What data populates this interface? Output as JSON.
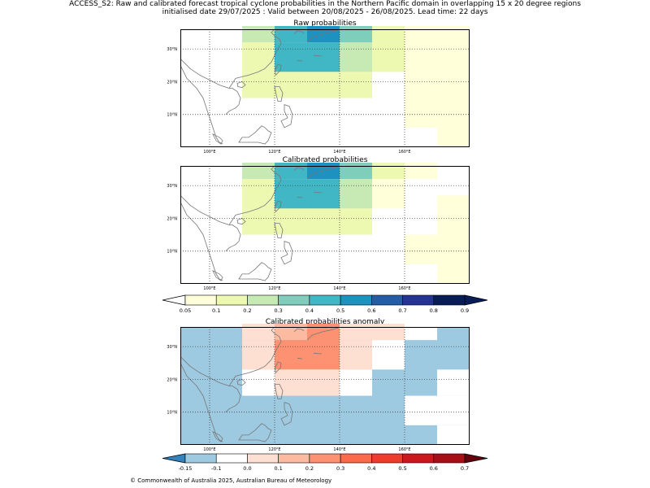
{
  "figure": {
    "title_line1": "ACCESS_S2: Raw and calibrated forecast tropical cyclone probabilities in the Northern Pacific domain in overlapping 15 x 20 degree regions",
    "title_line2": "initialised date 29/07/2025 :  Valid between 20/08/2025 - 26/08/2025. Lead time: 22 days",
    "footer": "© Commonwealth of Australia 2025, Australian Bureau of Meteorology"
  },
  "axes": {
    "x_ticks": [
      "100°E",
      "120°E",
      "140°E",
      "160°E"
    ],
    "y_ticks": [
      "30°N",
      "20°N",
      "10°N"
    ]
  },
  "maps": [
    {
      "id": "raw",
      "title": "Raw probabilities",
      "colorscale": "prob",
      "cells": [
        {
          "lon": [
            110,
            120
          ],
          "lat": [
            32,
            37
          ],
          "value": 0.2
        },
        {
          "lon": [
            120,
            130
          ],
          "lat": [
            32,
            37
          ],
          "value": 0.4
        },
        {
          "lon": [
            130,
            140
          ],
          "lat": [
            32,
            37
          ],
          "value": 0.5
        },
        {
          "lon": [
            140,
            150
          ],
          "lat": [
            32,
            37
          ],
          "value": 0.3
        },
        {
          "lon": [
            150,
            160
          ],
          "lat": [
            32,
            37
          ],
          "value": 0.1
        },
        {
          "lon": [
            160,
            180
          ],
          "lat": [
            32,
            37
          ],
          "value": 0.05
        },
        {
          "lon": [
            110,
            120
          ],
          "lat": [
            23,
            32
          ],
          "value": 0.1
        },
        {
          "lon": [
            120,
            140
          ],
          "lat": [
            23,
            32
          ],
          "value": 0.4
        },
        {
          "lon": [
            140,
            150
          ],
          "lat": [
            23,
            32
          ],
          "value": 0.2
        },
        {
          "lon": [
            150,
            160
          ],
          "lat": [
            23,
            32
          ],
          "value": 0.1
        },
        {
          "lon": [
            160,
            180
          ],
          "lat": [
            23,
            32
          ],
          "value": 0.05
        },
        {
          "lon": [
            110,
            150
          ],
          "lat": [
            15,
            23
          ],
          "value": 0.1
        },
        {
          "lon": [
            160,
            180
          ],
          "lat": [
            15,
            23
          ],
          "value": 0.05
        },
        {
          "lon": [
            160,
            180
          ],
          "lat": [
            6,
            15
          ],
          "value": 0.05
        },
        {
          "lon": [
            170,
            180
          ],
          "lat": [
            0,
            6
          ],
          "value": 0.05
        }
      ]
    },
    {
      "id": "calibrated",
      "title": "Calibrated probabilities",
      "colorscale": "prob",
      "cells": [
        {
          "lon": [
            110,
            120
          ],
          "lat": [
            32,
            37
          ],
          "value": 0.2
        },
        {
          "lon": [
            120,
            130
          ],
          "lat": [
            32,
            37
          ],
          "value": 0.4
        },
        {
          "lon": [
            130,
            140
          ],
          "lat": [
            32,
            37
          ],
          "value": 0.5
        },
        {
          "lon": [
            140,
            150
          ],
          "lat": [
            32,
            37
          ],
          "value": 0.3
        },
        {
          "lon": [
            150,
            160
          ],
          "lat": [
            32,
            37
          ],
          "value": 0.1
        },
        {
          "lon": [
            160,
            170
          ],
          "lat": [
            32,
            37
          ],
          "value": 0.05
        },
        {
          "lon": [
            110,
            120
          ],
          "lat": [
            23,
            32
          ],
          "value": 0.1
        },
        {
          "lon": [
            120,
            140
          ],
          "lat": [
            23,
            32
          ],
          "value": 0.4
        },
        {
          "lon": [
            140,
            150
          ],
          "lat": [
            23,
            32
          ],
          "value": 0.2
        },
        {
          "lon": [
            150,
            160
          ],
          "lat": [
            23,
            32
          ],
          "value": 0.05
        },
        {
          "lon": [
            170,
            180
          ],
          "lat": [
            23,
            27
          ],
          "value": 0.05
        },
        {
          "lon": [
            110,
            150
          ],
          "lat": [
            15,
            23
          ],
          "value": 0.1
        },
        {
          "lon": [
            170,
            180
          ],
          "lat": [
            15,
            23
          ],
          "value": 0.05
        },
        {
          "lon": [
            160,
            180
          ],
          "lat": [
            6,
            15
          ],
          "value": 0.05
        },
        {
          "lon": [
            170,
            180
          ],
          "lat": [
            0,
            6
          ],
          "value": 0.05
        }
      ]
    },
    {
      "id": "anomaly",
      "title": "Calibrated probabilities anomaly",
      "colorscale": "anom",
      "background_value": -0.15,
      "cells": [
        {
          "lon": [
            110,
            120
          ],
          "lat": [
            32,
            37
          ],
          "value": 0.05
        },
        {
          "lon": [
            120,
            130
          ],
          "lat": [
            32,
            37
          ],
          "value": 0.15
        },
        {
          "lon": [
            130,
            140
          ],
          "lat": [
            32,
            37
          ],
          "value": 0.25
        },
        {
          "lon": [
            140,
            150
          ],
          "lat": [
            32,
            37
          ],
          "value": 0.05
        },
        {
          "lon": [
            150,
            160
          ],
          "lat": [
            32,
            37
          ],
          "value": 0.0
        },
        {
          "lon": [
            160,
            170
          ],
          "lat": [
            32,
            37
          ],
          "value": -0.1
        },
        {
          "lon": [
            110,
            120
          ],
          "lat": [
            23,
            32
          ],
          "value": 0.0
        },
        {
          "lon": [
            120,
            140
          ],
          "lat": [
            23,
            32
          ],
          "value": 0.25
        },
        {
          "lon": [
            140,
            150
          ],
          "lat": [
            23,
            32
          ],
          "value": 0.05
        },
        {
          "lon": [
            150,
            160
          ],
          "lat": [
            23,
            32
          ],
          "value": -0.1
        },
        {
          "lon": [
            170,
            180
          ],
          "lat": [
            15,
            23
          ],
          "value": -0.1
        },
        {
          "lon": [
            110,
            120
          ],
          "lat": [
            15,
            23
          ],
          "value": -0.1
        },
        {
          "lon": [
            120,
            140
          ],
          "lat": [
            15,
            23
          ],
          "value": 0.0
        },
        {
          "lon": [
            140,
            150
          ],
          "lat": [
            15,
            23
          ],
          "value": -0.1
        },
        {
          "lon": [
            160,
            180
          ],
          "lat": [
            6,
            15
          ],
          "value": -0.1
        },
        {
          "lon": [
            170,
            180
          ],
          "lat": [
            0,
            6
          ],
          "value": -0.1
        }
      ]
    }
  ],
  "colorbars": {
    "prob": {
      "labels": [
        "0.05",
        "0.1",
        "0.2",
        "0.3",
        "0.4",
        "0.5",
        "0.6",
        "0.7",
        "0.8",
        "0.9"
      ],
      "colors": [
        "#ffffd9",
        "#edf8b1",
        "#c7e9b4",
        "#7fcdbb",
        "#41b6c4",
        "#1d91c0",
        "#225ea8",
        "#253494",
        "#081d58"
      ],
      "under": "#ffffff",
      "over": "#081d58"
    },
    "anom": {
      "labels": [
        "-0.15",
        "-0.1",
        "0.0",
        "0.1",
        "0.2",
        "0.3",
        "0.4",
        "0.5",
        "0.6",
        "0.7"
      ],
      "colors": [
        "#9ecae1",
        "#ffffff",
        "#fee0d2",
        "#fcbba1",
        "#fc9272",
        "#fb6a4a",
        "#ef3b2c",
        "#cb181d",
        "#a50f15"
      ],
      "under": "#3182bd",
      "over": "#67000d"
    }
  }
}
